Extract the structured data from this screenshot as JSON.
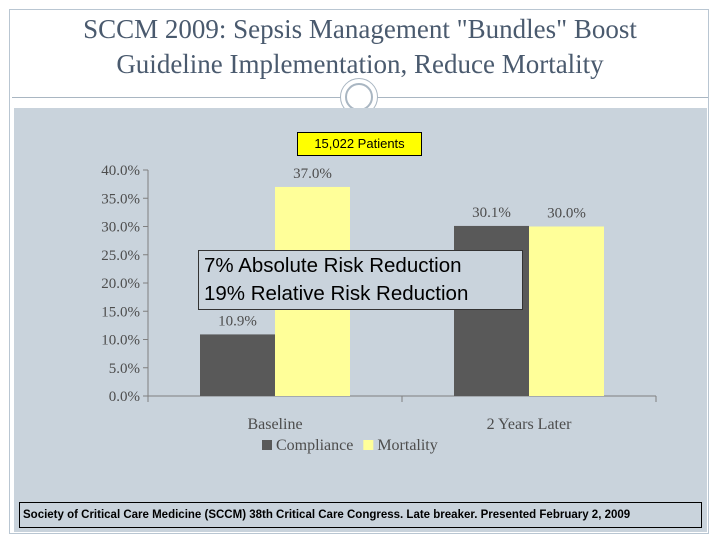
{
  "slide": {
    "title_line1": "SCCM 2009: Sepsis Management \"Bundles\" Boost",
    "title_line2": "Guideline Implementation, Reduce Mortality",
    "patients_label": "15,022 Patients",
    "risk_line1": "7% Absolute Risk Reduction",
    "risk_line2": "19% Relative Risk Reduction",
    "footnote": "Society of Critical Care Medicine (SCCM) 38th Critical Care Congress. Late breaker. Presented February 2, 2009"
  },
  "colors": {
    "title": "#4a5a6e",
    "plot_background": "#c9d3dc",
    "compliance": "#595959",
    "mortality": "#ffff99",
    "highlight_box": "#ffff00"
  },
  "chart_data": {
    "type": "bar",
    "title": "",
    "xlabel": "",
    "ylabel": "",
    "categories": [
      "Baseline",
      "2 Years Later"
    ],
    "series": [
      {
        "name": "Compliance",
        "values": [
          10.9,
          30.1
        ],
        "labels": [
          "10.9%",
          "30.1%"
        ],
        "color": "#595959"
      },
      {
        "name": "Mortality",
        "values": [
          37.0,
          30.0
        ],
        "labels": [
          "37.0%",
          "30.0%"
        ],
        "color": "#ffff99"
      }
    ],
    "ylim": [
      0,
      40
    ],
    "yticks": [
      0,
      5,
      10,
      15,
      20,
      25,
      30,
      35,
      40
    ],
    "ytick_labels": [
      "0.0%",
      "5.0%",
      "10.0%",
      "15.0%",
      "20.0%",
      "25.0%",
      "30.0%",
      "35.0%",
      "40.0%"
    ],
    "grid": false,
    "legend_position": "bottom"
  }
}
